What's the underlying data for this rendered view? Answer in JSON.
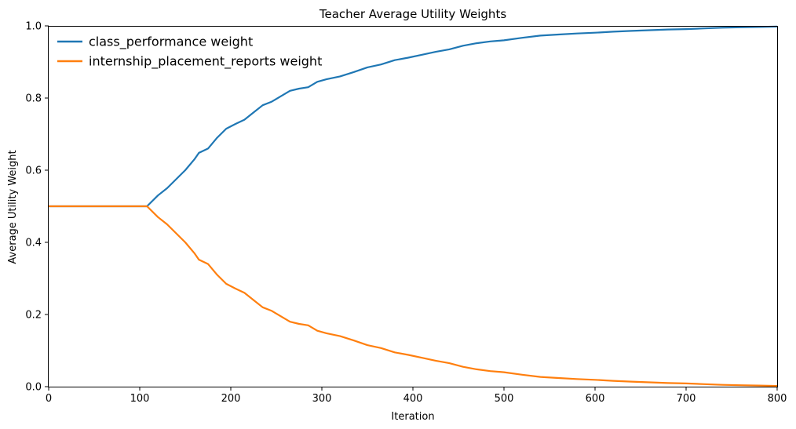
{
  "chart_data": {
    "type": "line",
    "title": "Teacher Average Utility Weights",
    "xlabel": "Iteration",
    "ylabel": "Average Utility Weight",
    "xlim": [
      0,
      800
    ],
    "ylim": [
      0,
      1.0
    ],
    "xticks": [
      "0",
      "100",
      "200",
      "300",
      "400",
      "500",
      "600",
      "700",
      "800"
    ],
    "yticks": [
      "0.0",
      "0.2",
      "0.4",
      "0.6",
      "0.8",
      "1.0"
    ],
    "grid": false,
    "legend_position": "top-left",
    "series": [
      {
        "name": "class_performance weight",
        "color": "#1f77b4",
        "x": [
          0,
          108,
          120,
          130,
          140,
          150,
          160,
          165,
          175,
          185,
          195,
          205,
          215,
          225,
          235,
          245,
          255,
          265,
          275,
          285,
          295,
          305,
          320,
          335,
          350,
          365,
          380,
          395,
          410,
          425,
          440,
          455,
          470,
          485,
          500,
          520,
          540,
          560,
          580,
          600,
          620,
          640,
          660,
          680,
          700,
          720,
          740,
          760,
          780,
          800
        ],
        "y": [
          0.5,
          0.5,
          0.53,
          0.55,
          0.575,
          0.6,
          0.63,
          0.648,
          0.66,
          0.69,
          0.715,
          0.728,
          0.74,
          0.76,
          0.78,
          0.79,
          0.805,
          0.82,
          0.826,
          0.83,
          0.845,
          0.852,
          0.86,
          0.872,
          0.885,
          0.893,
          0.905,
          0.912,
          0.92,
          0.928,
          0.935,
          0.945,
          0.952,
          0.957,
          0.96,
          0.967,
          0.973,
          0.976,
          0.979,
          0.981,
          0.984,
          0.986,
          0.988,
          0.99,
          0.991,
          0.993,
          0.995,
          0.996,
          0.997,
          0.998
        ]
      },
      {
        "name": "internship_placement_reports weight",
        "color": "#ff7f0e",
        "x": [
          0,
          108,
          120,
          130,
          140,
          150,
          160,
          165,
          175,
          185,
          195,
          205,
          215,
          225,
          235,
          245,
          255,
          265,
          275,
          285,
          295,
          305,
          320,
          335,
          350,
          365,
          380,
          395,
          410,
          425,
          440,
          455,
          470,
          485,
          500,
          520,
          540,
          560,
          580,
          600,
          620,
          640,
          660,
          680,
          700,
          720,
          740,
          760,
          780,
          800
        ],
        "y": [
          0.5,
          0.5,
          0.47,
          0.45,
          0.425,
          0.4,
          0.37,
          0.352,
          0.34,
          0.31,
          0.285,
          0.272,
          0.26,
          0.24,
          0.22,
          0.21,
          0.195,
          0.18,
          0.174,
          0.17,
          0.155,
          0.148,
          0.14,
          0.128,
          0.115,
          0.107,
          0.095,
          0.088,
          0.08,
          0.072,
          0.065,
          0.055,
          0.048,
          0.043,
          0.04,
          0.033,
          0.027,
          0.024,
          0.021,
          0.019,
          0.016,
          0.014,
          0.012,
          0.01,
          0.009,
          0.007,
          0.005,
          0.004,
          0.003,
          0.002
        ]
      }
    ]
  }
}
